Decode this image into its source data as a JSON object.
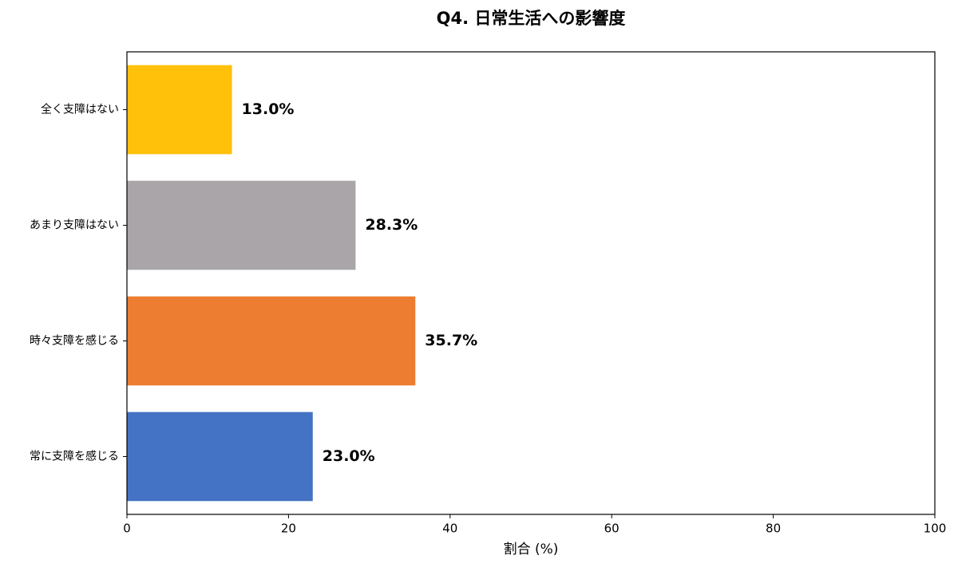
{
  "chart_data": {
    "type": "barh",
    "title": "Q4. 日常生活への影響度",
    "categories": [
      "全く支障はない",
      "あまり支障はない",
      "時々支障を感じる",
      "常に支障を感じる"
    ],
    "values": [
      13.0,
      28.3,
      35.7,
      23.0
    ],
    "value_labels": [
      "13.0%",
      "28.3%",
      "35.7%",
      "23.0%"
    ],
    "colors": [
      "#ffc10a",
      "#a9a5a8",
      "#ed7d31",
      "#4472c4"
    ],
    "xlabel": "割合 (%)",
    "xlim": [
      0,
      100
    ],
    "xticks": [
      0,
      20,
      40,
      60,
      80,
      100
    ]
  }
}
